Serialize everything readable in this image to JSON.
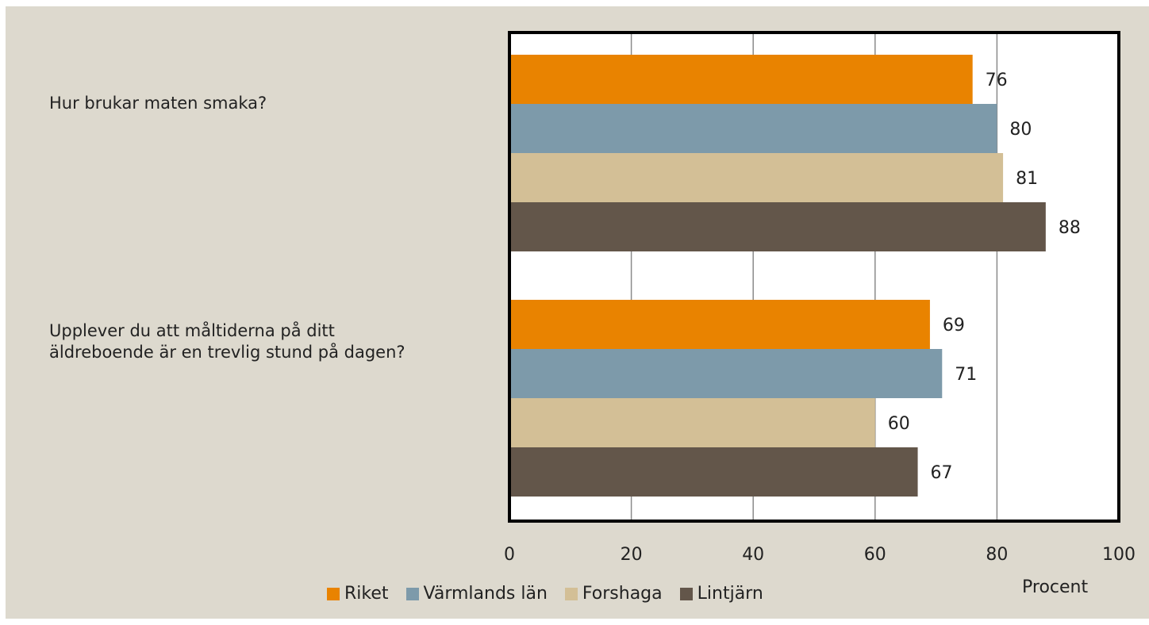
{
  "chart_data": {
    "type": "bar",
    "orientation": "horizontal",
    "categories": [
      "Hur brukar maten smaka?",
      "Upplever du att måltiderna på ditt äldreboende är en trevlig stund på dagen?"
    ],
    "series": [
      {
        "name": "Riket",
        "color": "#E98300",
        "values": [
          76,
          69
        ]
      },
      {
        "name": "Värmlands län",
        "color": "#7D9AAA",
        "values": [
          80,
          71
        ]
      },
      {
        "name": "Forshaga",
        "color": "#D3BF96",
        "values": [
          81,
          60
        ]
      },
      {
        "name": "Lintjärn",
        "color": "#63564A",
        "values": [
          88,
          67
        ]
      }
    ],
    "xlabel": "Procent",
    "xlim": [
      0,
      100
    ],
    "xticks": [
      0,
      20,
      40,
      60,
      80,
      100
    ],
    "grid": true,
    "legend_position": "bottom",
    "background_color": "#DDD9CE",
    "plot_background_color": "#FFFFFF"
  }
}
